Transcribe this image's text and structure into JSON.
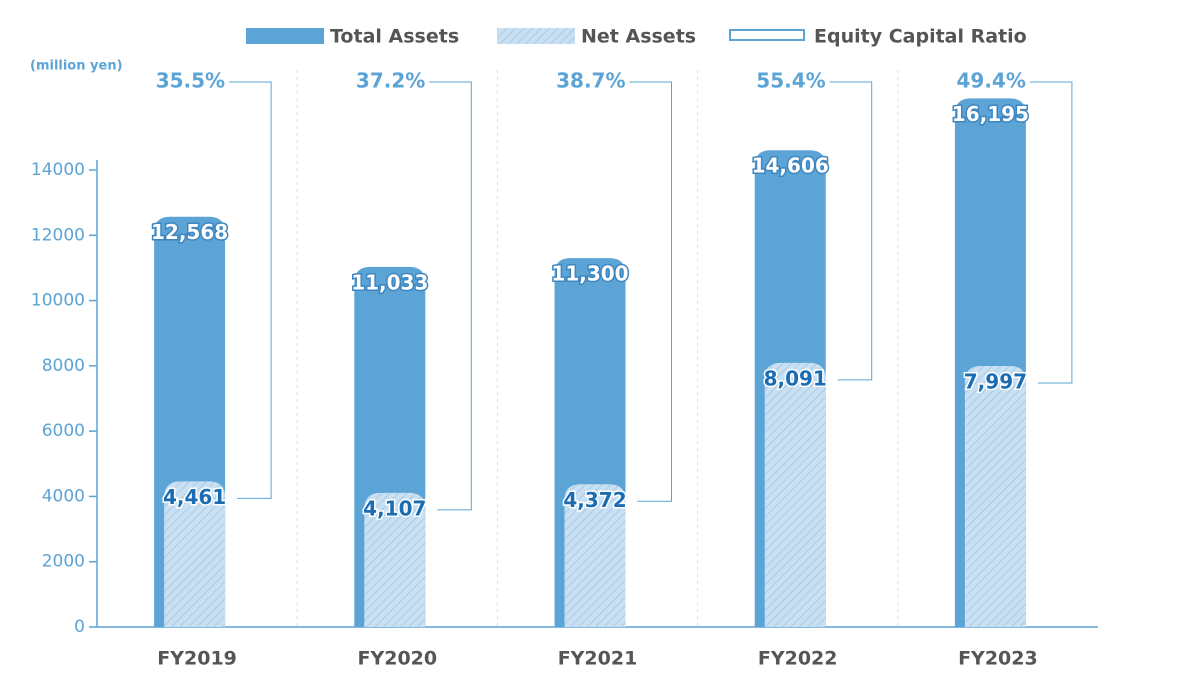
{
  "chart_data": {
    "type": "bar",
    "y_label": "(million yen)",
    "categories": [
      "FY2019",
      "FY2020",
      "FY2021",
      "FY2022",
      "FY2023"
    ],
    "series": [
      {
        "name": "Total Assets",
        "color": "#5ca4d6",
        "values": [
          12568,
          11033,
          11300,
          14606,
          16195
        ],
        "value_labels": [
          "12,568",
          "11,033",
          "11,300",
          "14,606",
          "16,195"
        ]
      },
      {
        "name": "Net Assets",
        "color": "#c3dcf0",
        "values": [
          4461,
          4107,
          4372,
          8091,
          7997
        ],
        "value_labels": [
          "4,461",
          "4,107",
          "4,372",
          "8,091",
          "7,997"
        ]
      },
      {
        "name": "Equity Capital Ratio",
        "color": "#5ca4d6",
        "values": [
          35.5,
          37.2,
          38.7,
          55.4,
          49.4
        ],
        "value_labels": [
          "35.5%",
          "37.2%",
          "38.7%",
          "55.4%",
          "49.4%"
        ]
      }
    ],
    "ylim": [
      0,
      14000
    ],
    "yticks": [
      0,
      2000,
      4000,
      6000,
      8000,
      10000,
      12000,
      14000
    ]
  }
}
